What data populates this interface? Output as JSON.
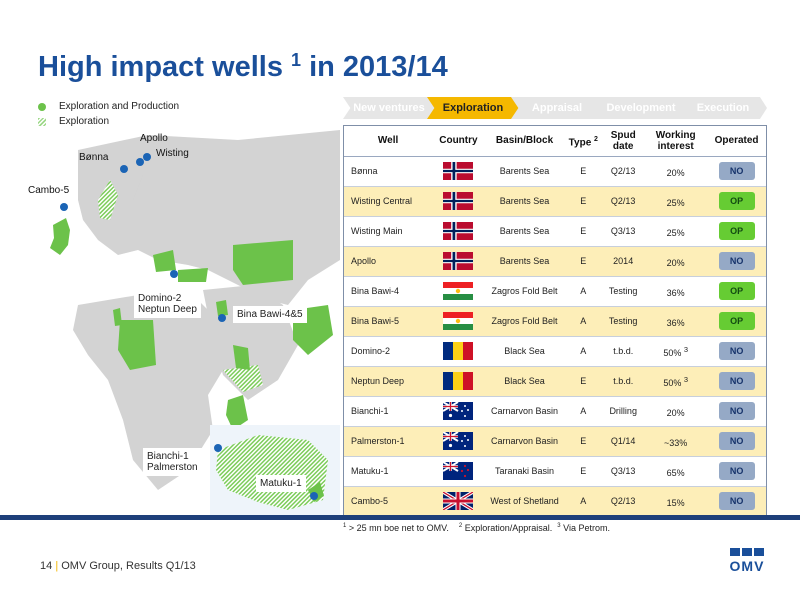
{
  "title": {
    "main": "High impact wells",
    "sup": "1",
    "rest": " in 2013/14"
  },
  "legend": {
    "item1": "Exploration and Production",
    "item2": "Exploration"
  },
  "map": {
    "labels": {
      "apollo": "Apollo",
      "bonna": "Bønna",
      "wisting": "Wisting",
      "cambo": "Cambo-5",
      "domino": "Domino-2",
      "neptun": "Neptun Deep",
      "bina": "Bina Bawi-4&5",
      "bianchi": "Bianchi-1",
      "palmerston": "Palmerston",
      "matuku": "Matuku-1"
    }
  },
  "stages": [
    "New ventures",
    "Exploration",
    "Appraisal",
    "Development",
    "Execution"
  ],
  "table": {
    "headers": {
      "well": "Well",
      "country": "Country",
      "basin": "Basin/Block",
      "type": "Type",
      "type_sup": "2",
      "spud": "Spud date",
      "interest": "Working interest",
      "operated": "Operated"
    },
    "rows": [
      {
        "well": "Bønna",
        "flag": "norway",
        "basin": "Barents Sea",
        "type": "E",
        "spud": "Q2/13",
        "interest": "20%",
        "interest_sup": "",
        "operated": "NO"
      },
      {
        "well": "Wisting Central",
        "flag": "norway",
        "basin": "Barents Sea",
        "type": "E",
        "spud": "Q2/13",
        "interest": "25%",
        "interest_sup": "",
        "operated": "OP"
      },
      {
        "well": "Wisting Main",
        "flag": "norway",
        "basin": "Barents Sea",
        "type": "E",
        "spud": "Q3/13",
        "interest": "25%",
        "interest_sup": "",
        "operated": "OP"
      },
      {
        "well": "Apollo",
        "flag": "norway",
        "basin": "Barents Sea",
        "type": "E",
        "spud": "2014",
        "interest": "20%",
        "interest_sup": "",
        "operated": "NO"
      },
      {
        "well": "Bina Bawi-4",
        "flag": "kurdistan",
        "basin": "Zagros Fold Belt",
        "type": "A",
        "spud": "Testing",
        "interest": "36%",
        "interest_sup": "",
        "operated": "OP"
      },
      {
        "well": "Bina Bawi-5",
        "flag": "kurdistan",
        "basin": "Zagros Fold Belt",
        "type": "A",
        "spud": "Testing",
        "interest": "36%",
        "interest_sup": "",
        "operated": "OP"
      },
      {
        "well": "Domino-2",
        "flag": "romania",
        "basin": "Black Sea",
        "type": "A",
        "spud": "t.b.d.",
        "interest": "50%",
        "interest_sup": "3",
        "operated": "NO"
      },
      {
        "well": "Neptun Deep",
        "flag": "romania",
        "basin": "Black Sea",
        "type": "E",
        "spud": "t.b.d.",
        "interest": "50%",
        "interest_sup": "3",
        "operated": "NO"
      },
      {
        "well": "Bianchi-1",
        "flag": "australia",
        "basin": "Carnarvon Basin",
        "type": "A",
        "spud": "Drilling",
        "interest": "20%",
        "interest_sup": "",
        "operated": "NO"
      },
      {
        "well": "Palmerston-1",
        "flag": "australia",
        "basin": "Carnarvon Basin",
        "type": "E",
        "spud": "Q1/14",
        "interest": "~33%",
        "interest_sup": "",
        "operated": "NO"
      },
      {
        "well": "Matuku-1",
        "flag": "newzealand",
        "basin": "Taranaki Basin",
        "type": "E",
        "spud": "Q3/13",
        "interest": "65%",
        "interest_sup": "",
        "operated": "NO"
      },
      {
        "well": "Cambo-5",
        "flag": "uk",
        "basin": "West of Shetland",
        "type": "A",
        "spud": "Q2/13",
        "interest": "15%",
        "interest_sup": "",
        "operated": "NO"
      }
    ]
  },
  "footnotes": {
    "sup1": "1",
    "text1": " > 25 mn boe net to OMV.",
    "sup2": "2",
    "text2": " Exploration/Appraisal.",
    "sup3": "3",
    "text3": " Via Petrom."
  },
  "footer": {
    "page": "14",
    "sep": "|",
    "text": "OMV Group, Results Q1/13"
  },
  "logo": "OMV",
  "colors": {
    "title": "#1a4f9a",
    "active_stage": "#f5b800",
    "op_badge": "#66cc33",
    "no_badge": "#95a9c6",
    "highlight_row": "#fdeeb8",
    "land": "#d3d3d3",
    "omv_land": "#6cc24a"
  }
}
